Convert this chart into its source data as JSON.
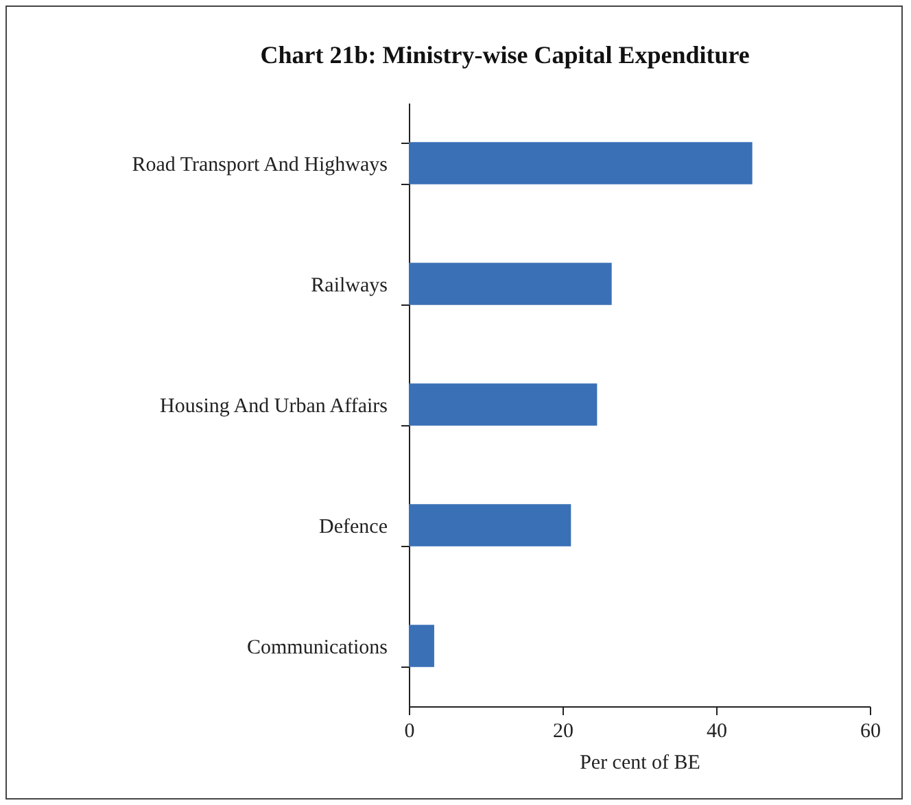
{
  "chart_data": {
    "type": "bar",
    "orientation": "horizontal",
    "title": "Chart 21b: Ministry-wise Capital Expenditure",
    "xlabel": "Per cent of BE",
    "categories": [
      "Road Transport And Highways",
      "Railways",
      "Housing And Urban Affairs",
      "Defence",
      "Communications"
    ],
    "values": [
      44.7,
      26.4,
      24.5,
      21.1,
      3.3
    ],
    "color": "#3a70b6",
    "xlim": [
      0,
      60
    ],
    "xticks": [
      0,
      20,
      40,
      60
    ],
    "grid": false
  }
}
